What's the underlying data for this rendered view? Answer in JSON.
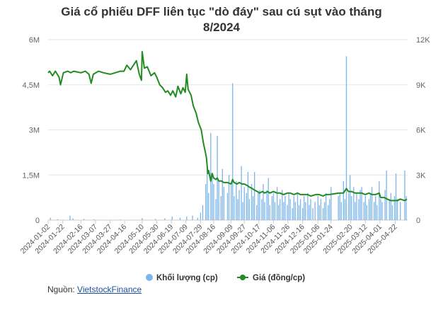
{
  "chart_data": {
    "type": "bar+line",
    "title_line1": "Giá cổ phiếu DFF liên tục \"dò đáy\" sau cú sụt vào tháng",
    "title_line2": "8/2024",
    "x_ticks": [
      "2024-01-02",
      "2024-01-22",
      "2024-02-16",
      "2024-03-07",
      "2024-03-27",
      "2024-04-16",
      "2024-05-10",
      "2024-05-30",
      "2024-06-19",
      "2024-07-09",
      "2024-07-29",
      "2024-08-16",
      "2024-09-09",
      "2024-09-27",
      "2024-10-17",
      "2024-11-06",
      "2024-11-26",
      "2024-12-16",
      "2025-01-06",
      "2025-01-24",
      "2025-02-20",
      "2025-03-12",
      "2025-04-01",
      "2025-04-22"
    ],
    "y_left": {
      "ticks": [
        "0",
        "1,5M",
        "3M",
        "4,5M",
        "6M"
      ],
      "min": 0,
      "max": 6000000
    },
    "y_right": {
      "ticks": [
        "0",
        "3K",
        "6K",
        "9K",
        "12K"
      ],
      "min": 0,
      "max": 12000
    },
    "series": [
      {
        "name": "Khối lượng (cp)",
        "type": "bar",
        "axis": "left",
        "color": "#7cb5ec",
        "points": [
          [
            "2024-01-05",
            80000
          ],
          [
            "2024-01-15",
            30000
          ],
          [
            "2024-02-01",
            150000
          ],
          [
            "2024-02-05",
            60000
          ],
          [
            "2024-02-20",
            40000
          ],
          [
            "2024-03-05",
            30000
          ],
          [
            "2024-04-10",
            20000
          ],
          [
            "2024-05-10",
            70000
          ],
          [
            "2024-05-28",
            40000
          ],
          [
            "2024-06-10",
            60000
          ],
          [
            "2024-06-20",
            120000
          ],
          [
            "2024-07-01",
            80000
          ],
          [
            "2024-07-10",
            120000
          ],
          [
            "2024-07-18",
            150000
          ],
          [
            "2024-07-25",
            80000
          ],
          [
            "2024-07-29",
            250000
          ],
          [
            "2024-08-01",
            500000
          ],
          [
            "2024-08-05",
            1200000
          ],
          [
            "2024-08-07",
            1700000
          ],
          [
            "2024-08-09",
            900000
          ],
          [
            "2024-08-12",
            2900000
          ],
          [
            "2024-08-14",
            1500000
          ],
          [
            "2024-08-16",
            1200000
          ],
          [
            "2024-08-19",
            700000
          ],
          [
            "2024-08-21",
            2800000
          ],
          [
            "2024-08-23",
            1300000
          ],
          [
            "2024-08-26",
            800000
          ],
          [
            "2024-08-28",
            1700000
          ],
          [
            "2024-08-30",
            1100000
          ],
          [
            "2024-09-04",
            900000
          ],
          [
            "2024-09-06",
            1500000
          ],
          [
            "2024-09-09",
            1200000
          ],
          [
            "2024-09-11",
            4550000
          ],
          [
            "2024-09-13",
            800000
          ],
          [
            "2024-09-16",
            1300000
          ],
          [
            "2024-09-18",
            700000
          ],
          [
            "2024-09-20",
            1000000
          ],
          [
            "2024-09-23",
            1800000
          ],
          [
            "2024-09-25",
            600000
          ],
          [
            "2024-09-27",
            1100000
          ],
          [
            "2024-09-30",
            900000
          ],
          [
            "2024-10-02",
            1600000
          ],
          [
            "2024-10-04",
            700000
          ],
          [
            "2024-10-07",
            1200000
          ],
          [
            "2024-10-09",
            800000
          ],
          [
            "2024-10-11",
            1600000
          ],
          [
            "2024-10-14",
            500000
          ],
          [
            "2024-10-16",
            900000
          ],
          [
            "2024-10-18",
            1000000
          ],
          [
            "2024-10-21",
            700000
          ],
          [
            "2024-10-23",
            1200000
          ],
          [
            "2024-10-25",
            600000
          ],
          [
            "2024-10-28",
            1000000
          ],
          [
            "2024-10-30",
            1400000
          ],
          [
            "2024-11-01",
            500000
          ],
          [
            "2024-11-04",
            800000
          ],
          [
            "2024-11-06",
            900000
          ],
          [
            "2024-11-08",
            600000
          ],
          [
            "2024-11-11",
            1100000
          ],
          [
            "2024-11-13",
            500000
          ],
          [
            "2024-11-15",
            700000
          ],
          [
            "2024-11-18",
            1000000
          ],
          [
            "2024-11-20",
            600000
          ],
          [
            "2024-11-22",
            800000
          ],
          [
            "2024-11-25",
            500000
          ],
          [
            "2024-11-27",
            900000
          ],
          [
            "2024-11-29",
            700000
          ],
          [
            "2024-12-02",
            400000
          ],
          [
            "2024-12-04",
            800000
          ],
          [
            "2024-12-06",
            600000
          ],
          [
            "2024-12-09",
            900000
          ],
          [
            "2024-12-11",
            500000
          ],
          [
            "2024-12-13",
            700000
          ],
          [
            "2024-12-16",
            400000
          ],
          [
            "2024-12-18",
            800000
          ],
          [
            "2024-12-20",
            600000
          ],
          [
            "2024-12-23",
            900000
          ],
          [
            "2024-12-25",
            500000
          ],
          [
            "2024-12-27",
            700000
          ],
          [
            "2024-12-30",
            400000
          ],
          [
            "2025-01-02",
            600000
          ],
          [
            "2025-01-06",
            800000
          ],
          [
            "2025-01-08",
            500000
          ],
          [
            "2025-01-10",
            700000
          ],
          [
            "2025-01-13",
            400000
          ],
          [
            "2025-01-15",
            600000
          ],
          [
            "2025-01-17",
            900000
          ],
          [
            "2025-01-20",
            500000
          ],
          [
            "2025-01-22",
            700000
          ],
          [
            "2025-01-24",
            1100000
          ],
          [
            "2025-02-03",
            800000
          ],
          [
            "2025-02-05",
            900000
          ],
          [
            "2025-02-07",
            600000
          ],
          [
            "2025-02-10",
            1300000
          ],
          [
            "2025-02-12",
            700000
          ],
          [
            "2025-02-14",
            5450000
          ],
          [
            "2025-02-17",
            900000
          ],
          [
            "2025-02-19",
            1500000
          ],
          [
            "2025-02-21",
            800000
          ],
          [
            "2025-02-24",
            1100000
          ],
          [
            "2025-02-26",
            600000
          ],
          [
            "2025-02-28",
            900000
          ],
          [
            "2025-03-03",
            700000
          ],
          [
            "2025-03-05",
            1000000
          ],
          [
            "2025-03-07",
            1100000
          ],
          [
            "2025-03-10",
            600000
          ],
          [
            "2025-03-12",
            800000
          ],
          [
            "2025-03-14",
            500000
          ],
          [
            "2025-03-17",
            700000
          ],
          [
            "2025-03-19",
            900000
          ],
          [
            "2025-03-21",
            1100000
          ],
          [
            "2025-03-24",
            600000
          ],
          [
            "2025-03-26",
            800000
          ],
          [
            "2025-03-28",
            500000
          ],
          [
            "2025-03-31",
            1300000
          ],
          [
            "2025-04-02",
            700000
          ],
          [
            "2025-04-04",
            600000
          ],
          [
            "2025-04-08",
            1000000
          ],
          [
            "2025-04-10",
            1650000
          ],
          [
            "2025-04-14",
            700000
          ],
          [
            "2025-04-16",
            900000
          ],
          [
            "2025-04-18",
            500000
          ],
          [
            "2025-04-21",
            800000
          ],
          [
            "2025-04-23",
            1550000
          ],
          [
            "2025-04-25",
            700000
          ],
          [
            "2025-04-29",
            600000
          ],
          [
            "2025-05-05",
            1650000
          ],
          [
            "2025-05-07",
            800000
          ]
        ]
      },
      {
        "name": "Giá (đồng/cp)",
        "type": "line",
        "axis": "right",
        "color": "#228b22",
        "points": [
          [
            "2024-01-02",
            9800
          ],
          [
            "2024-01-04",
            9900
          ],
          [
            "2024-01-08",
            9600
          ],
          [
            "2024-01-12",
            9900
          ],
          [
            "2024-01-17",
            9500
          ],
          [
            "2024-01-19",
            9000
          ],
          [
            "2024-01-23",
            9800
          ],
          [
            "2024-01-29",
            9900
          ],
          [
            "2024-02-02",
            9800
          ],
          [
            "2024-02-06",
            9900
          ],
          [
            "2024-02-16",
            9800
          ],
          [
            "2024-02-22",
            9900
          ],
          [
            "2024-02-27",
            9700
          ],
          [
            "2024-03-01",
            9100
          ],
          [
            "2024-03-04",
            9700
          ],
          [
            "2024-03-11",
            9900
          ],
          [
            "2024-03-18",
            9800
          ],
          [
            "2024-03-27",
            9700
          ],
          [
            "2024-04-03",
            9800
          ],
          [
            "2024-04-10",
            9900
          ],
          [
            "2024-04-15",
            9900
          ],
          [
            "2024-04-19",
            10300
          ],
          [
            "2024-04-24",
            10000
          ],
          [
            "2024-05-02",
            10600
          ],
          [
            "2024-05-06",
            9700
          ],
          [
            "2024-05-09",
            9300
          ],
          [
            "2024-05-10",
            11200
          ],
          [
            "2024-05-13",
            10100
          ],
          [
            "2024-05-17",
            10200
          ],
          [
            "2024-05-22",
            9600
          ],
          [
            "2024-05-27",
            9800
          ],
          [
            "2024-05-30",
            9500
          ],
          [
            "2024-06-03",
            9000
          ],
          [
            "2024-06-07",
            8800
          ],
          [
            "2024-06-11",
            8500
          ],
          [
            "2024-06-14",
            8600
          ],
          [
            "2024-06-18",
            8300
          ],
          [
            "2024-06-21",
            8600
          ],
          [
            "2024-06-25",
            8200
          ],
          [
            "2024-06-28",
            8900
          ],
          [
            "2024-07-02",
            8400
          ],
          [
            "2024-07-05",
            8800
          ],
          [
            "2024-07-08",
            8500
          ],
          [
            "2024-07-10",
            9700
          ],
          [
            "2024-07-12",
            8700
          ],
          [
            "2024-07-16",
            8300
          ],
          [
            "2024-07-19",
            7600
          ],
          [
            "2024-07-23",
            7100
          ],
          [
            "2024-07-26",
            6500
          ],
          [
            "2024-07-30",
            6000
          ],
          [
            "2024-08-02",
            5100
          ],
          [
            "2024-08-06",
            4200
          ],
          [
            "2024-08-08",
            3100
          ],
          [
            "2024-08-09",
            3300
          ],
          [
            "2024-08-12",
            2600
          ],
          [
            "2024-08-14",
            3100
          ],
          [
            "2024-08-16",
            2800
          ],
          [
            "2024-08-19",
            2700
          ],
          [
            "2024-08-21",
            2800
          ],
          [
            "2024-08-23",
            2600
          ],
          [
            "2024-08-27",
            2600
          ],
          [
            "2024-08-30",
            2500
          ],
          [
            "2024-09-04",
            2500
          ],
          [
            "2024-09-09",
            2400
          ],
          [
            "2024-09-11",
            2700
          ],
          [
            "2024-09-13",
            2500
          ],
          [
            "2024-09-17",
            2400
          ],
          [
            "2024-09-20",
            2500
          ],
          [
            "2024-09-24",
            2400
          ],
          [
            "2024-09-27",
            2400
          ],
          [
            "2024-10-01",
            2300
          ],
          [
            "2024-10-04",
            2200
          ],
          [
            "2024-10-08",
            2100
          ],
          [
            "2024-10-11",
            2000
          ],
          [
            "2024-10-15",
            1900
          ],
          [
            "2024-10-18",
            1800
          ],
          [
            "2024-10-22",
            1900
          ],
          [
            "2024-10-25",
            1800
          ],
          [
            "2024-10-29",
            1900
          ],
          [
            "2024-11-01",
            1800
          ],
          [
            "2024-11-06",
            1900
          ],
          [
            "2024-11-11",
            1800
          ],
          [
            "2024-11-15",
            1800
          ],
          [
            "2024-11-20",
            1700
          ],
          [
            "2024-11-25",
            1800
          ],
          [
            "2024-11-29",
            1800
          ],
          [
            "2024-12-04",
            1700
          ],
          [
            "2024-12-09",
            1800
          ],
          [
            "2024-12-13",
            1700
          ],
          [
            "2024-12-18",
            1700
          ],
          [
            "2024-12-23",
            1700
          ],
          [
            "2024-12-27",
            1600
          ],
          [
            "2025-01-03",
            1700
          ],
          [
            "2025-01-08",
            1700
          ],
          [
            "2025-01-13",
            1600
          ],
          [
            "2025-01-17",
            1700
          ],
          [
            "2025-01-22",
            1700
          ],
          [
            "2025-02-04",
            1800
          ],
          [
            "2025-02-10",
            1800
          ],
          [
            "2025-02-14",
            2100
          ],
          [
            "2025-02-17",
            1900
          ],
          [
            "2025-02-21",
            1900
          ],
          [
            "2025-02-26",
            1800
          ],
          [
            "2025-03-03",
            1800
          ],
          [
            "2025-03-07",
            1800
          ],
          [
            "2025-03-12",
            1700
          ],
          [
            "2025-03-17",
            1800
          ],
          [
            "2025-03-21",
            1700
          ],
          [
            "2025-03-26",
            1700
          ],
          [
            "2025-03-31",
            1800
          ],
          [
            "2025-04-02",
            1500
          ],
          [
            "2025-04-07",
            1500
          ],
          [
            "2025-04-11",
            1400
          ],
          [
            "2025-04-16",
            1300
          ],
          [
            "2025-04-21",
            1300
          ],
          [
            "2025-04-25",
            1300
          ],
          [
            "2025-04-29",
            1400
          ],
          [
            "2025-05-05",
            1300
          ],
          [
            "2025-05-08",
            1400
          ]
        ]
      }
    ],
    "legend": [
      "Khối lượng (cp)",
      "Giá (đồng/cp)"
    ],
    "legend_position": "bottom",
    "grid": "horizontal"
  },
  "source": {
    "prefix": "Nguồn: ",
    "link": "VietstockFinance"
  }
}
